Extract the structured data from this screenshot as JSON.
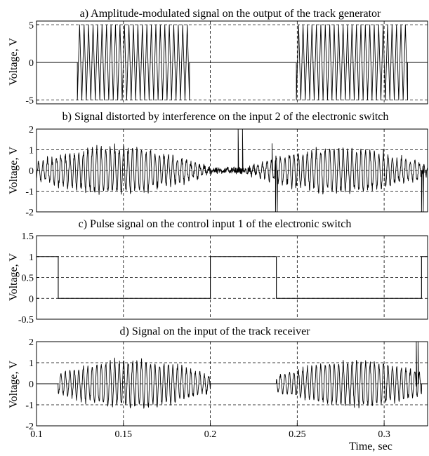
{
  "chart_data": [
    {
      "panel": "a",
      "type": "line",
      "title": "a) Amplitude-modulated signal on the output of the track generator",
      "ylabel": "Voltage, V",
      "xlim": [
        0.1,
        0.325
      ],
      "ylim": [
        -5.5,
        5.5
      ],
      "y_ticks": [
        {
          "v": 5,
          "label": "5"
        },
        {
          "v": 0,
          "label": "0"
        },
        {
          "v": -5,
          "label": "-5"
        }
      ],
      "x_ticks": [],
      "grid": true,
      "series": [
        {
          "kind": "am_burst",
          "amplitude": 5,
          "bursts": [
            [
              0.1235,
              0.188
            ],
            [
              0.2495,
              0.3135
            ]
          ],
          "cycles_per_burst": 25,
          "baseline": 0
        }
      ]
    },
    {
      "panel": "b",
      "type": "line",
      "title": "b) Signal distorted by interference on the input 2 of the electronic switch",
      "ylabel": "Voltage, V",
      "xlim": [
        0.1,
        0.325
      ],
      "ylim": [
        -2,
        2
      ],
      "y_ticks": [
        {
          "v": 2,
          "label": "2"
        },
        {
          "v": 1,
          "label": "1"
        },
        {
          "v": 0,
          "label": "0"
        },
        {
          "v": -1,
          "label": "-1"
        },
        {
          "v": -2,
          "label": "-2"
        }
      ],
      "x_ticks": [],
      "grid": true,
      "series": [
        {
          "kind": "noisy_modulated",
          "envelopes": [
            {
              "center": 0.145,
              "half_width": 0.045,
              "peak": 1.2
            },
            {
              "center": 0.275,
              "half_width": 0.045,
              "peak": 1.15
            }
          ],
          "noise_amplitude": 0.2,
          "spikes": [
            {
              "x": 0.216,
              "y": 2.0
            },
            {
              "x": 0.2185,
              "y": 2.0
            },
            {
              "x": 0.2355,
              "y": 1.3
            },
            {
              "x": 0.2375,
              "y": -2.0
            },
            {
              "x": 0.2385,
              "y": -2.0
            },
            {
              "x": 0.3215,
              "y": -2.0
            },
            {
              "x": 0.3225,
              "y": -2.0
            }
          ]
        }
      ]
    },
    {
      "panel": "c",
      "type": "line",
      "title": "c) Pulse signal on the control input 1 of the electronic switch",
      "ylabel": "Voltage, V",
      "xlim": [
        0.1,
        0.325
      ],
      "ylim": [
        -0.5,
        1.5
      ],
      "y_ticks": [
        {
          "v": 1.5,
          "label": "1.5"
        },
        {
          "v": 1,
          "label": "1"
        },
        {
          "v": 0.5,
          "label": "0.5"
        },
        {
          "v": 0,
          "label": "0"
        },
        {
          "v": -0.5,
          "label": "-0.5"
        }
      ],
      "x_ticks": [],
      "grid": true,
      "series": [
        {
          "kind": "step",
          "points": [
            [
              0.1,
              1
            ],
            [
              0.1125,
              1
            ],
            [
              0.1125,
              0
            ],
            [
              0.2,
              0
            ],
            [
              0.2,
              1
            ],
            [
              0.238,
              1
            ],
            [
              0.238,
              0
            ],
            [
              0.3215,
              0
            ],
            [
              0.3215,
              1
            ],
            [
              0.325,
              1
            ]
          ]
        }
      ]
    },
    {
      "panel": "d",
      "type": "line",
      "title": "d) Signal on the input of the track receiver",
      "ylabel": "Voltage, V",
      "xlabel": "Time, sec",
      "xlim": [
        0.1,
        0.325
      ],
      "ylim": [
        -2,
        2
      ],
      "y_ticks": [
        {
          "v": 2,
          "label": "2"
        },
        {
          "v": 1,
          "label": "1"
        },
        {
          "v": 0,
          "label": "0"
        },
        {
          "v": -1,
          "label": "-1"
        },
        {
          "v": -2,
          "label": "-2"
        }
      ],
      "x_ticks": [
        {
          "v": 0.1,
          "label": "0.1"
        },
        {
          "v": 0.15,
          "label": "0.15"
        },
        {
          "v": 0.2,
          "label": "0.2"
        },
        {
          "v": 0.25,
          "label": "0.25"
        },
        {
          "v": 0.3,
          "label": "0.3"
        }
      ],
      "grid": true,
      "series": [
        {
          "kind": "gated_modulated",
          "envelopes": [
            {
              "center": 0.155,
              "half_width": 0.045,
              "peak": 1.2
            },
            {
              "center": 0.283,
              "half_width": 0.045,
              "peak": 1.15
            }
          ],
          "gates": [
            [
              0.1125,
              0.2
            ],
            [
              0.238,
              0.3215
            ]
          ],
          "noise_amplitude": 0.12,
          "spikes": [
            {
              "x": 0.3185,
              "y": 2.0
            },
            {
              "x": 0.3195,
              "y": 2.0
            }
          ]
        }
      ]
    }
  ]
}
